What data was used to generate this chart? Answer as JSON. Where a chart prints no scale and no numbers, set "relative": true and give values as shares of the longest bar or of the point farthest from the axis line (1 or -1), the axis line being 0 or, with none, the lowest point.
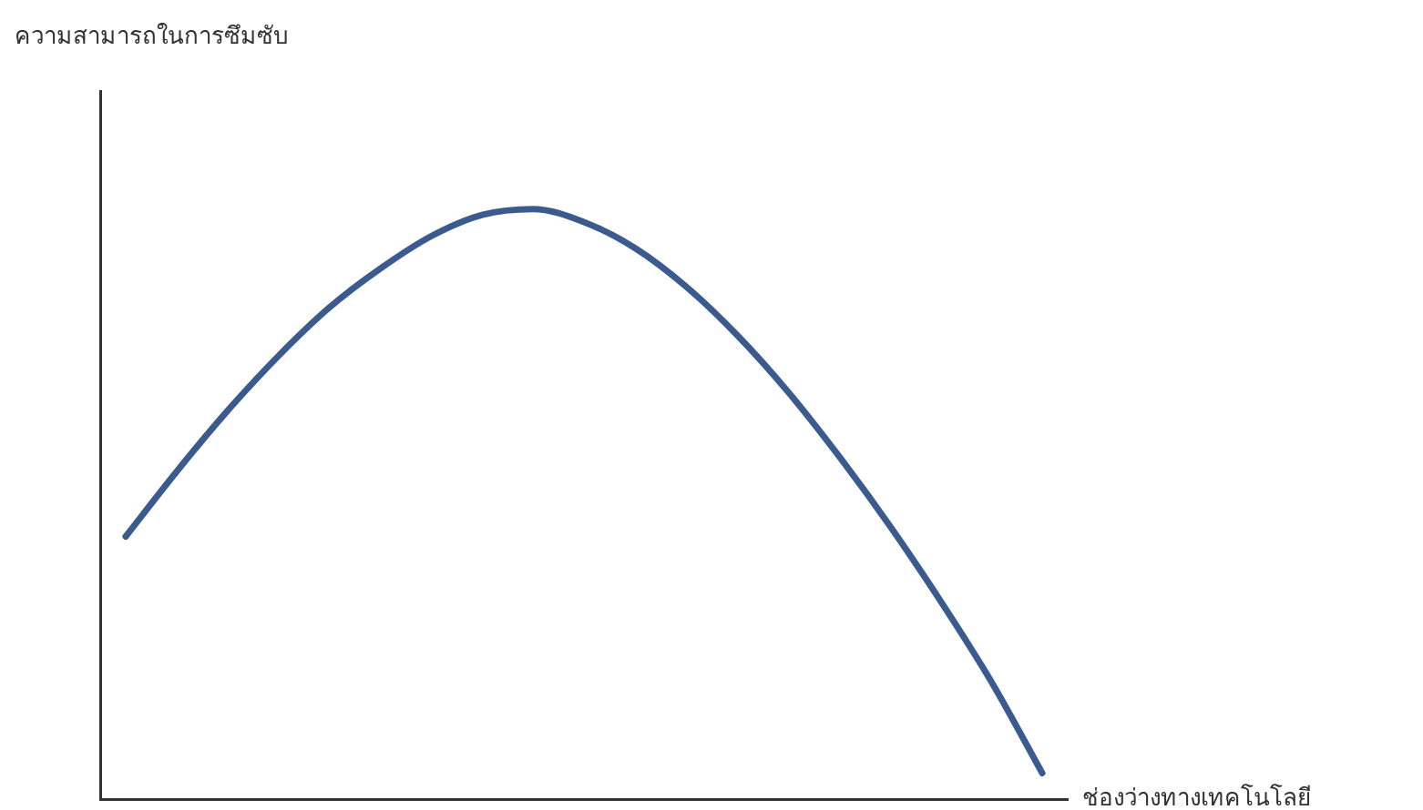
{
  "chart_data": {
    "type": "line",
    "annotations": [
      "ความสามารถในการซึมซับ"
    ],
    "xlabel": "ช่องว่างทางเทคโนโลยี",
    "relative": true,
    "marker": "none",
    "color": "#3b5b8e",
    "categories": [
      null,
      null,
      null,
      null,
      null,
      null,
      null,
      null,
      null,
      null,
      null,
      null,
      null,
      null,
      null,
      null,
      null,
      null,
      null
    ],
    "values": [
      0.445,
      0.555,
      0.658,
      0.751,
      0.833,
      0.899,
      0.954,
      0.99,
      1,
      0.978,
      0.934,
      0.869,
      0.787,
      0.691,
      0.582,
      0.464,
      0.336,
      0.199,
      0.044
    ]
  }
}
